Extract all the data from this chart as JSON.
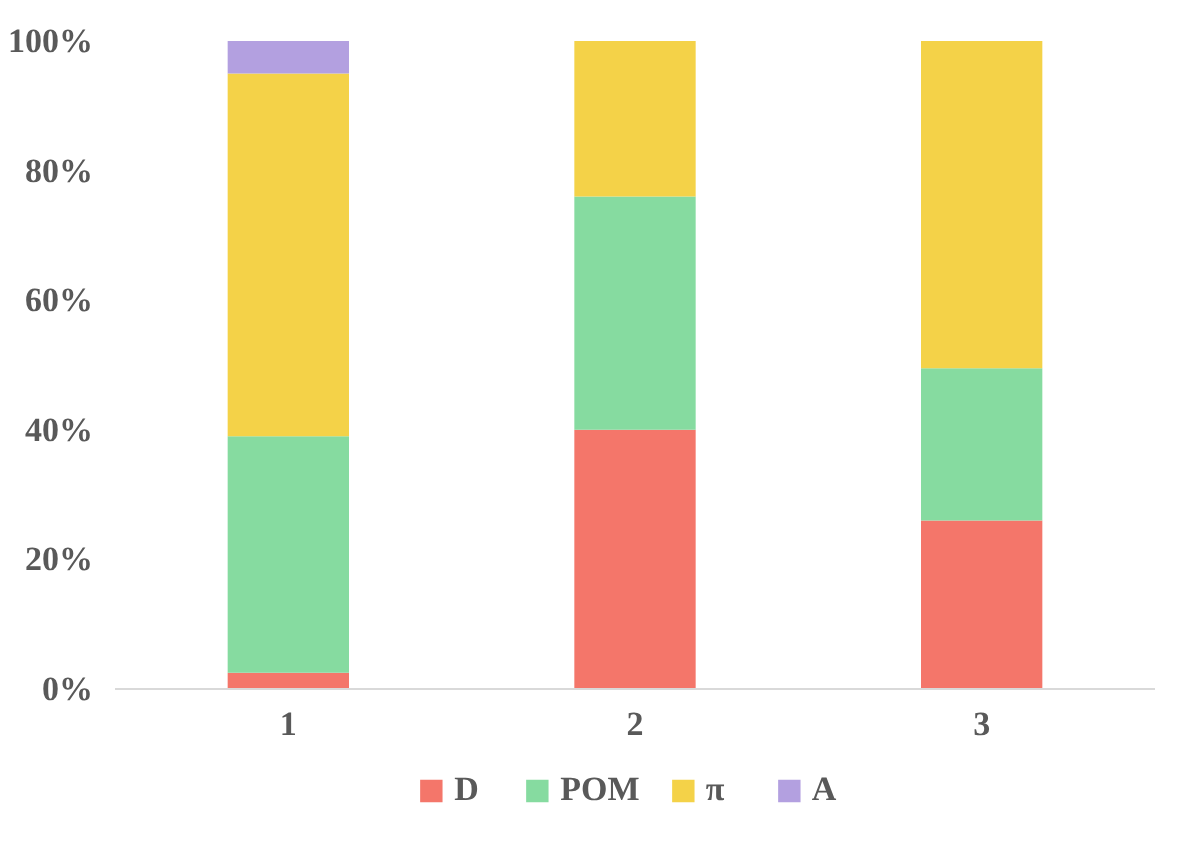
{
  "chart_data": {
    "type": "bar",
    "stacked": true,
    "categories": [
      "1",
      "2",
      "3"
    ],
    "series": [
      {
        "name": "D",
        "color": "#f4766a",
        "values": [
          2.5,
          40,
          26
        ]
      },
      {
        "name": "POM",
        "color": "#86dba0",
        "values": [
          36.5,
          36,
          23.5
        ]
      },
      {
        "name": "π",
        "color": "#f4d248",
        "values": [
          56,
          24,
          50.5
        ]
      },
      {
        "name": "A",
        "color": "#b3a0e0",
        "values": [
          5,
          0,
          0
        ]
      }
    ],
    "ylim": [
      0,
      100
    ],
    "yticks": [
      {
        "value": 0,
        "label": "0%"
      },
      {
        "value": 20,
        "label": "20%"
      },
      {
        "value": 40,
        "label": "40%"
      },
      {
        "value": 60,
        "label": "60%"
      },
      {
        "value": 80,
        "label": "80%"
      },
      {
        "value": 100,
        "label": "100%"
      }
    ],
    "grid": false,
    "legend": "bottom"
  }
}
